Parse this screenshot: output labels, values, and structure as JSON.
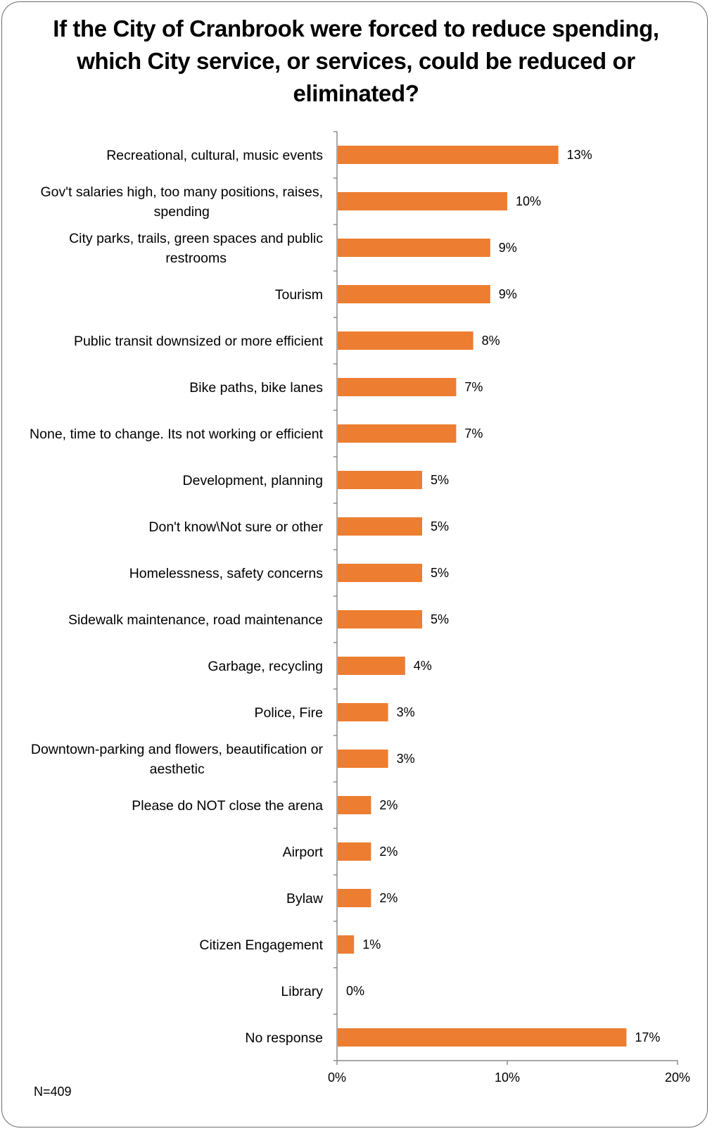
{
  "title": "If the City of Cranbrook were forced to reduce spending, which City service, or services, could be reduced or eliminated?",
  "note": "N=409",
  "colors": {
    "bar": "#ED7D31",
    "axis": "#8c8c8c",
    "text": "#000000"
  },
  "chart_data": {
    "type": "bar",
    "orientation": "horizontal",
    "title": "If the City of Cranbrook were forced to reduce spending, which City service, or services, could be reduced or eliminated?",
    "xlabel": "",
    "ylabel": "",
    "xlim": [
      0,
      20
    ],
    "xticks": [
      0,
      10,
      20
    ],
    "xtick_labels": [
      "0%",
      "10%",
      "20%"
    ],
    "grid": false,
    "legend": "none",
    "categories": [
      "Recreational, cultural, music events",
      "Gov't salaries high, too many positions, raises, spending",
      "City parks, trails, green spaces and public restrooms",
      "Tourism",
      "Public transit downsized or more efficient",
      "Bike paths, bike lanes",
      "None, time to change. Its not working or efficient",
      "Development, planning",
      "Don't know\\Not sure or other",
      "Homelessness, safety concerns",
      "Sidewalk maintenance, road maintenance",
      "Garbage, recycling",
      "Police, Fire",
      "Downtown-parking and flowers, beautification or aesthetic",
      "Please do NOT close the arena",
      "Airport",
      "Bylaw",
      "Citizen Engagement",
      "Library",
      "No response"
    ],
    "category_lines": [
      [
        "Recreational, cultural, music events"
      ],
      [
        "Gov't salaries high, too many positions, raises,",
        "spending"
      ],
      [
        "City parks, trails, green spaces and public",
        "restrooms"
      ],
      [
        "Tourism"
      ],
      [
        "Public transit downsized or more efficient"
      ],
      [
        "Bike paths, bike lanes"
      ],
      [
        "None, time to change. Its not working or efficient"
      ],
      [
        "Development, planning"
      ],
      [
        "Don't know\\Not sure or other"
      ],
      [
        "Homelessness, safety concerns"
      ],
      [
        "Sidewalk maintenance, road maintenance"
      ],
      [
        "Garbage, recycling"
      ],
      [
        "Police, Fire"
      ],
      [
        "Downtown-parking and flowers, beautification or",
        "aesthetic"
      ],
      [
        "Please do NOT close the arena"
      ],
      [
        "Airport"
      ],
      [
        "Bylaw"
      ],
      [
        "Citizen Engagement"
      ],
      [
        "Library"
      ],
      [
        "No response"
      ]
    ],
    "values": [
      13,
      10,
      9,
      9,
      8,
      7,
      7,
      5,
      5,
      5,
      5,
      4,
      3,
      3,
      2,
      2,
      2,
      1,
      0,
      17
    ],
    "value_labels": [
      "13%",
      "10%",
      "9%",
      "9%",
      "8%",
      "7%",
      "7%",
      "5%",
      "5%",
      "5%",
      "5%",
      "4%",
      "3%",
      "3%",
      "2%",
      "2%",
      "2%",
      "1%",
      "0%",
      "17%"
    ]
  }
}
